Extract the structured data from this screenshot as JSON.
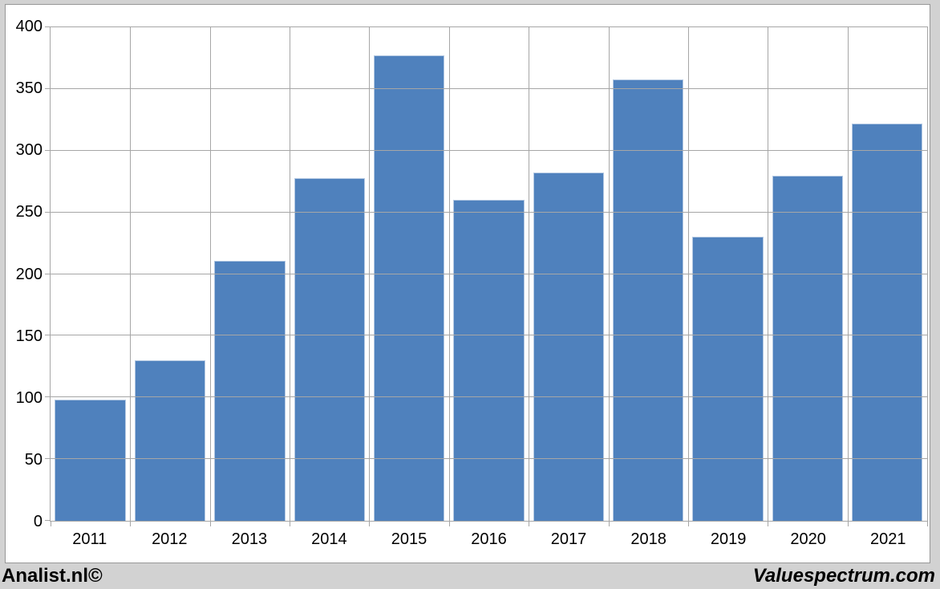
{
  "branding": {
    "left": "Analist.nl©",
    "right": "Valuespectrum.com"
  },
  "colors": {
    "background": "#d2d2d2",
    "chart_background": "#ffffff",
    "frame_border": "#979797",
    "gridline": "#a6a6a6",
    "bar_fill": "#4f81bd",
    "bar_edge": "#b3c8e2",
    "text": "#000000"
  },
  "chart_data": {
    "type": "bar",
    "title": "",
    "xlabel": "",
    "ylabel": "",
    "categories": [
      "2011",
      "2012",
      "2013",
      "2014",
      "2015",
      "2016",
      "2017",
      "2018",
      "2019",
      "2020",
      "2021"
    ],
    "values": [
      98,
      130,
      211,
      278,
      377,
      260,
      282,
      358,
      230,
      280,
      322
    ],
    "ylim": [
      0,
      400
    ],
    "ytick_step": 50,
    "ytick_labels": [
      "0",
      "50",
      "100",
      "150",
      "200",
      "250",
      "300",
      "350",
      "400"
    ],
    "grid": true,
    "legend": false,
    "bar_color": "#4f81bd"
  }
}
